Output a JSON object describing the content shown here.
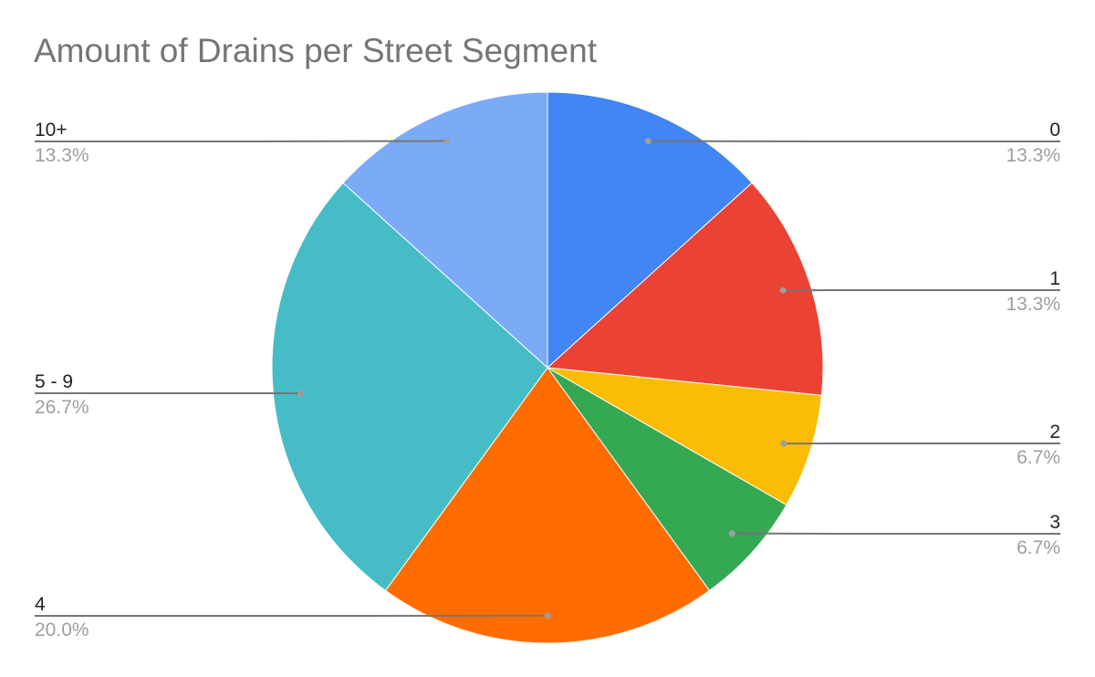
{
  "chart_data": {
    "type": "pie",
    "title": "Amount of Drains per Street Segment",
    "slices": [
      {
        "label": "0",
        "value": 13.3,
        "value_label": "13.3%",
        "color": "#4285F4"
      },
      {
        "label": "1",
        "value": 13.3,
        "value_label": "13.3%",
        "color": "#EA4335"
      },
      {
        "label": "2",
        "value": 6.7,
        "value_label": "6.7%",
        "color": "#FBBC04"
      },
      {
        "label": "3",
        "value": 6.7,
        "value_label": "6.7%",
        "color": "#34A853"
      },
      {
        "label": "4",
        "value": 20.0,
        "value_label": "20.0%",
        "color": "#FF6D01"
      },
      {
        "label": "5 - 9",
        "value": 26.7,
        "value_label": "26.7%",
        "color": "#46BDC6"
      },
      {
        "label": "10+",
        "value": 13.3,
        "value_label": "13.3%",
        "color": "#7BAAF7"
      }
    ],
    "start_angle": "12 o'clock",
    "direction": "clockwise",
    "legend": "none",
    "label_style": "leader lines to outer labels"
  }
}
